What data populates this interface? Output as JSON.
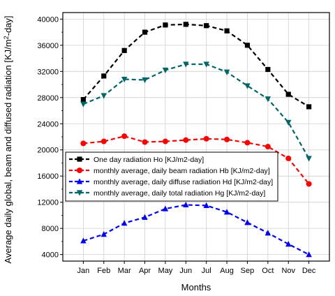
{
  "chart_data": {
    "type": "line",
    "xlabel": "Months",
    "ylabel": "Average daily global, beam and diffused radiation [KJ/m",
    "ylabel_sup": "2",
    "ylabel_tail": "-day]",
    "categories": [
      "Jan",
      "Feb",
      "Mar",
      "Apr",
      "May",
      "Jun",
      "Jul",
      "Aug",
      "Sep",
      "Oct",
      "Nov",
      "Dec"
    ],
    "ylim": [
      3000,
      41000
    ],
    "yticks": [
      4000,
      8000,
      12000,
      16000,
      20000,
      24000,
      28000,
      32000,
      36000,
      40000
    ],
    "grid": true,
    "legend_position": "middle-left",
    "series": [
      {
        "name": "One day radiation Ho [KJ/m2-day]",
        "color": "#000000",
        "marker": "square",
        "values": [
          27700,
          31300,
          35200,
          38000,
          39100,
          39200,
          39000,
          38200,
          36000,
          32300,
          28500,
          26600
        ]
      },
      {
        "name": "monthly average, daily beam radiation Hb [KJ/m2-day]",
        "color": "#ff0000",
        "marker": "circle",
        "values": [
          21000,
          21300,
          22100,
          21200,
          21300,
          21500,
          21700,
          21600,
          21100,
          20500,
          18700,
          14800
        ]
      },
      {
        "name": "monthly average, daily diffuse radiation Hd [KJ/m2-day]",
        "color": "#0000ff",
        "marker": "triangle-up",
        "values": [
          6100,
          7100,
          8800,
          9700,
          11000,
          11600,
          11500,
          10500,
          8900,
          7300,
          5600,
          4000
        ]
      },
      {
        "name": "monthly average, daily total radiation Hg [KJ/m2-day]",
        "color": "#006666",
        "marker": "triangle-down",
        "values": [
          27000,
          28300,
          30800,
          30700,
          32200,
          33100,
          33100,
          31900,
          29800,
          27800,
          24200,
          18700
        ]
      }
    ]
  }
}
